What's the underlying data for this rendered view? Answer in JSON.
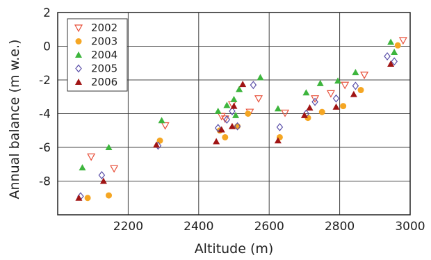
{
  "chart_data": {
    "type": "scatter",
    "xlabel": "Altitude (m)",
    "ylabel": "Annual balance (m w.e.)",
    "xlim": [
      2000,
      3000
    ],
    "ylim": [
      -10,
      2
    ],
    "xticks": [
      2200,
      2400,
      2600,
      2800,
      3000
    ],
    "yticks": [
      -8,
      -6,
      -4,
      -2,
      0,
      2
    ],
    "grid": true,
    "legend_position": "top-left",
    "series": [
      {
        "name": "2002",
        "marker": "triangle-down-open",
        "color": "#e8503a",
        "points": [
          [
            2095,
            -6.55
          ],
          [
            2160,
            -7.25
          ],
          [
            2305,
            -4.7
          ],
          [
            2465,
            -4.15
          ],
          [
            2475,
            -4.3
          ],
          [
            2495,
            -3.45
          ],
          [
            2545,
            -3.9
          ],
          [
            2570,
            -3.1
          ],
          [
            2645,
            -3.95
          ],
          [
            2730,
            -3.1
          ],
          [
            2775,
            -2.8
          ],
          [
            2815,
            -2.3
          ],
          [
            2870,
            -1.7
          ],
          [
            2980,
            0.35
          ]
        ]
      },
      {
        "name": "2003",
        "marker": "circle-filled",
        "color": "#f5a623",
        "points": [
          [
            2085,
            -9.0
          ],
          [
            2145,
            -8.85
          ],
          [
            2290,
            -5.6
          ],
          [
            2460,
            -5.0
          ],
          [
            2475,
            -5.4
          ],
          [
            2510,
            -4.75
          ],
          [
            2540,
            -4.0
          ],
          [
            2630,
            -5.4
          ],
          [
            2710,
            -4.25
          ],
          [
            2750,
            -3.9
          ],
          [
            2810,
            -3.55
          ],
          [
            2860,
            -2.6
          ],
          [
            2965,
            0.05
          ]
        ]
      },
      {
        "name": "2004",
        "marker": "triangle-up-filled",
        "color": "#3db53d",
        "points": [
          [
            2070,
            -7.2
          ],
          [
            2145,
            -6.0
          ],
          [
            2295,
            -4.4
          ],
          [
            2455,
            -3.85
          ],
          [
            2480,
            -3.5
          ],
          [
            2500,
            -3.15
          ],
          [
            2505,
            -4.1
          ],
          [
            2515,
            -2.55
          ],
          [
            2575,
            -1.85
          ],
          [
            2625,
            -3.7
          ],
          [
            2705,
            -2.75
          ],
          [
            2745,
            -2.2
          ],
          [
            2795,
            -2.05
          ],
          [
            2845,
            -1.55
          ],
          [
            2945,
            0.25
          ],
          [
            2955,
            -0.35
          ]
        ]
      },
      {
        "name": "2005",
        "marker": "diamond-open",
        "color": "#5a4fa8",
        "points": [
          [
            2065,
            -8.9
          ],
          [
            2125,
            -7.65
          ],
          [
            2285,
            -5.9
          ],
          [
            2455,
            -4.85
          ],
          [
            2480,
            -4.35
          ],
          [
            2495,
            -3.85
          ],
          [
            2510,
            -4.75
          ],
          [
            2555,
            -2.3
          ],
          [
            2630,
            -4.8
          ],
          [
            2705,
            -4.0
          ],
          [
            2730,
            -3.3
          ],
          [
            2790,
            -3.1
          ],
          [
            2845,
            -2.35
          ],
          [
            2935,
            -0.6
          ],
          [
            2955,
            -0.9
          ]
        ]
      },
      {
        "name": "2006",
        "marker": "triangle-up-filled",
        "color": "#a01414",
        "points": [
          [
            2060,
            -9.0
          ],
          [
            2130,
            -8.0
          ],
          [
            2280,
            -5.85
          ],
          [
            2450,
            -5.65
          ],
          [
            2465,
            -4.95
          ],
          [
            2495,
            -4.75
          ],
          [
            2500,
            -3.55
          ],
          [
            2525,
            -2.25
          ],
          [
            2625,
            -5.6
          ],
          [
            2700,
            -4.1
          ],
          [
            2715,
            -3.65
          ],
          [
            2790,
            -3.6
          ],
          [
            2840,
            -2.85
          ],
          [
            2945,
            -1.05
          ]
        ]
      }
    ]
  }
}
